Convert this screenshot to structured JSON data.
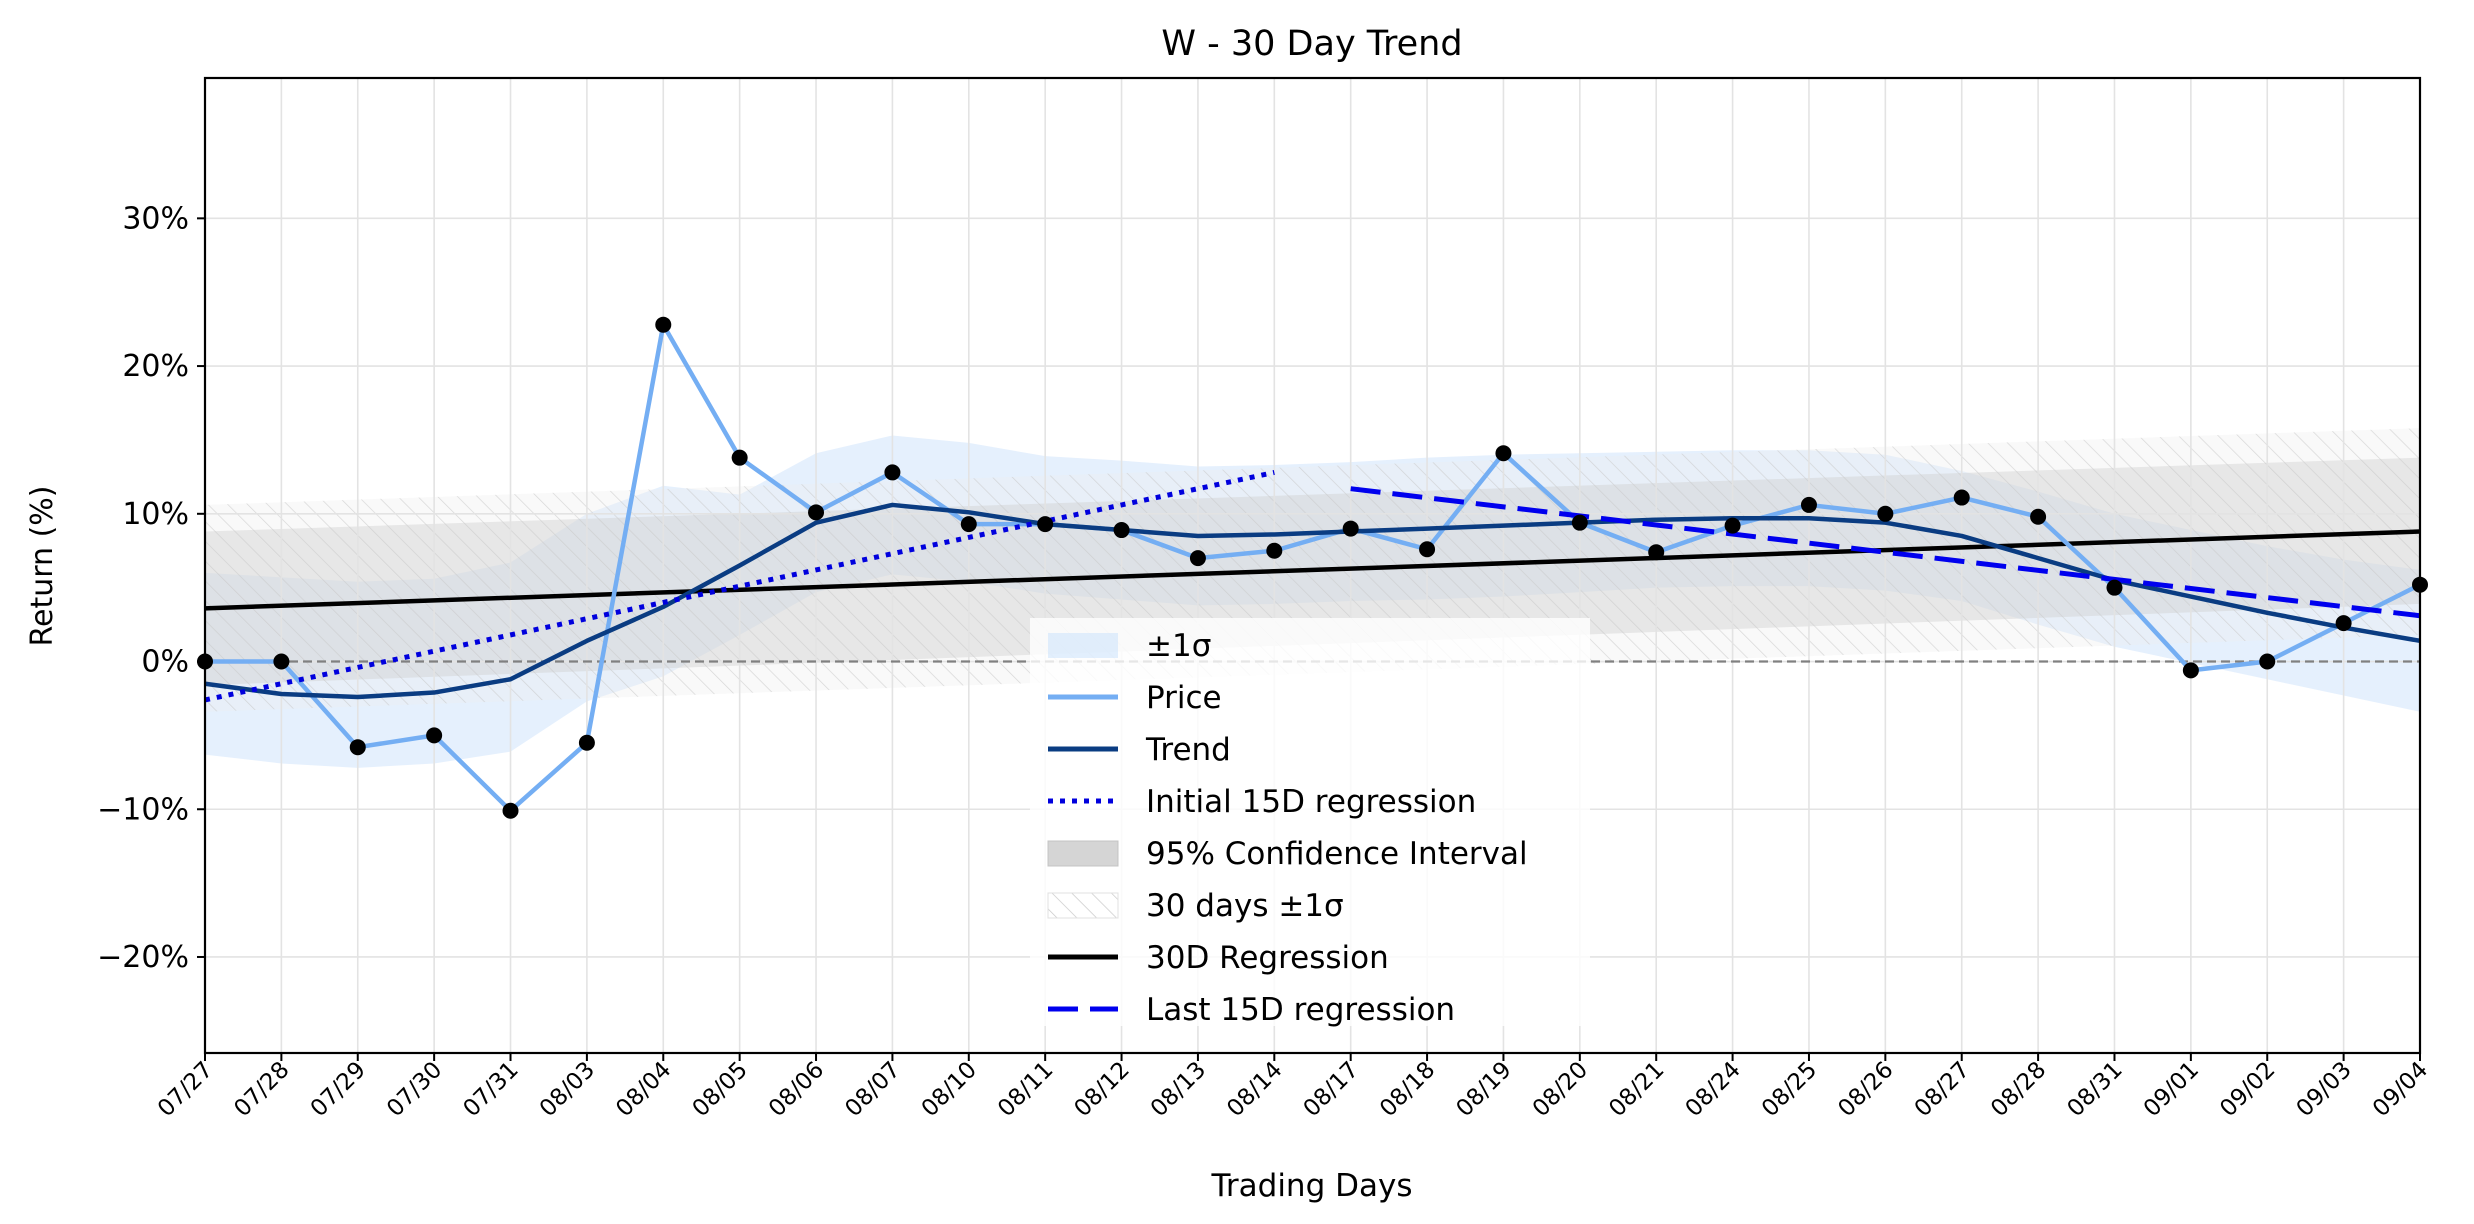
{
  "chart_data": {
    "type": "line",
    "title": "W - 30 Day Trend",
    "xlabel": "Trading Days",
    "ylabel": "Return (%)",
    "ylim": [
      -26.5,
      39.5
    ],
    "yticks": [
      -20,
      -10,
      0,
      10,
      20,
      30
    ],
    "ytick_labels": [
      "−20%",
      "−10%",
      "0%",
      "10%",
      "20%",
      "30%"
    ],
    "grid": true,
    "legend_position": "bottom-center",
    "categories": [
      "07/27",
      "07/28",
      "07/29",
      "07/30",
      "07/31",
      "08/03",
      "08/04",
      "08/05",
      "08/06",
      "08/07",
      "08/10",
      "08/11",
      "08/12",
      "08/13",
      "08/14",
      "08/17",
      "08/18",
      "08/19",
      "08/20",
      "08/21",
      "08/24",
      "08/25",
      "08/26",
      "08/27",
      "08/28",
      "08/31",
      "09/01",
      "09/02",
      "09/03",
      "09/04"
    ],
    "series": [
      {
        "name": "Price",
        "color": "#74aef3",
        "values": [
          0.0,
          0.0,
          -5.8,
          -5.0,
          -10.1,
          -5.5,
          22.8,
          13.8,
          10.1,
          12.8,
          9.3,
          9.3,
          8.9,
          7.0,
          7.5,
          9.0,
          7.6,
          14.1,
          9.4,
          7.4,
          9.2,
          10.6,
          10.0,
          11.1,
          9.8,
          5.0,
          -0.6,
          0.0,
          2.6,
          5.2
        ]
      },
      {
        "name": "Trend",
        "color": "#0a3c82",
        "values": [
          -1.5,
          -2.2,
          -2.4,
          -2.1,
          -1.2,
          1.4,
          3.7,
          6.5,
          9.4,
          10.6,
          10.1,
          9.3,
          8.9,
          8.5,
          8.6,
          8.8,
          9.0,
          9.2,
          9.4,
          9.6,
          9.7,
          9.7,
          9.4,
          8.5,
          7.0,
          5.5,
          4.4,
          3.3,
          2.3,
          1.4
        ]
      },
      {
        "name": "Initial 15D regression",
        "color": "#0000dd",
        "start": 0,
        "end": 14,
        "y_start": -2.6,
        "y_end": 12.8
      },
      {
        "name": "Last 15D regression",
        "color": "#0000ee",
        "start": 15,
        "end": 29,
        "y_start": 11.7,
        "y_end": 3.1
      },
      {
        "name": "30D Regression",
        "color": "#000000",
        "start": 0,
        "end": 29,
        "y_start": 3.6,
        "y_end": 8.8
      }
    ],
    "bands": [
      {
        "name": "±1σ",
        "color": "#cfe4fb",
        "upper": [
          6.0,
          5.7,
          5.4,
          5.6,
          6.7,
          10.0,
          11.9,
          11.3,
          14.1,
          15.3,
          14.8,
          13.9,
          13.6,
          13.2,
          13.3,
          13.5,
          13.8,
          14.0,
          14.1,
          14.2,
          14.3,
          14.3,
          14.0,
          12.9,
          11.5,
          10.0,
          8.9,
          7.8,
          6.9,
          6.2
        ],
        "lower": [
          -6.3,
          -6.9,
          -7.2,
          -6.9,
          -6.1,
          -2.7,
          -1.0,
          1.8,
          4.7,
          5.9,
          5.4,
          4.6,
          4.2,
          3.8,
          3.9,
          4.1,
          4.2,
          4.4,
          4.7,
          5.0,
          5.1,
          5.1,
          4.8,
          4.1,
          2.5,
          1.0,
          -0.1,
          -1.2,
          -2.3,
          -3.4
        ]
      },
      {
        "name": "95% Confidence Interval",
        "color": "#d9d9d9",
        "upper_start": 8.8,
        "upper_end": 13.8,
        "lower_start": -1.6,
        "lower_end": 3.9
      },
      {
        "name": "30 days ±1σ",
        "color": "#eeeeee",
        "upper_start": 10.6,
        "upper_end": 15.8,
        "lower_start": -3.4,
        "lower_end": 1.8
      }
    ],
    "markers": {
      "series": "Price",
      "color": "#000000"
    },
    "zero_line": {
      "value": 0,
      "color": "#808080",
      "style": "dashed"
    },
    "legend": [
      "±1σ",
      "Price",
      "Trend",
      "Initial 15D regression",
      "95% Confidence Interval",
      "30 days ±1σ",
      "30D Regression",
      "Last 15D regression"
    ]
  }
}
